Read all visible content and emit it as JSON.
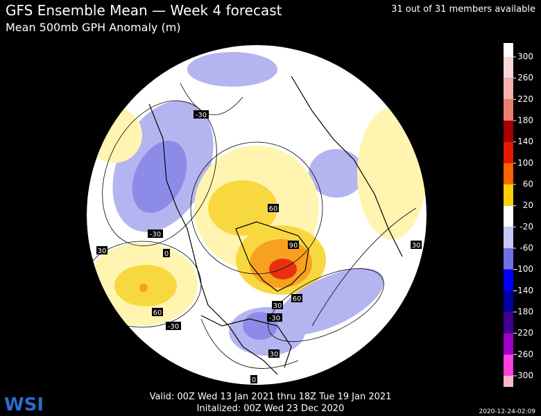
{
  "header": {
    "title": "GFS Ensemble Mean — Week 4 forecast",
    "subtitle": "Mean 500mb GPH Anomaly (m)",
    "members": "31 out of 31 members available"
  },
  "footer": {
    "valid": "Valid: 00Z Wed 13 Jan 2021 thru 18Z Tue 19 Jan 2021",
    "initialized": "Initalized: 00Z Wed 23 Dec 2020",
    "timestamp": "2020-12-24-02:09",
    "logo": "WSI"
  },
  "colorbar": {
    "ticks": [
      300,
      260,
      220,
      180,
      140,
      100,
      60,
      20,
      -20,
      -60,
      -100,
      -140,
      -180,
      -220,
      -260,
      -300
    ],
    "colors": [
      "#ffffff",
      "#fcd8d8",
      "#f7b0ac",
      "#ec7f6f",
      "#a80000",
      "#e81800",
      "#ff6400",
      "#ffd000",
      "#ffffff",
      "#c8c8f4",
      "#7070e8",
      "#0000ff",
      "#0000a0",
      "#400090",
      "#a000c8",
      "#ff40e0",
      "#f8b8c8"
    ]
  },
  "map": {
    "contour_labels": [
      -30,
      60,
      -30,
      0,
      30,
      90,
      60,
      30,
      60,
      -30,
      -30,
      30,
      0,
      30
    ]
  }
}
